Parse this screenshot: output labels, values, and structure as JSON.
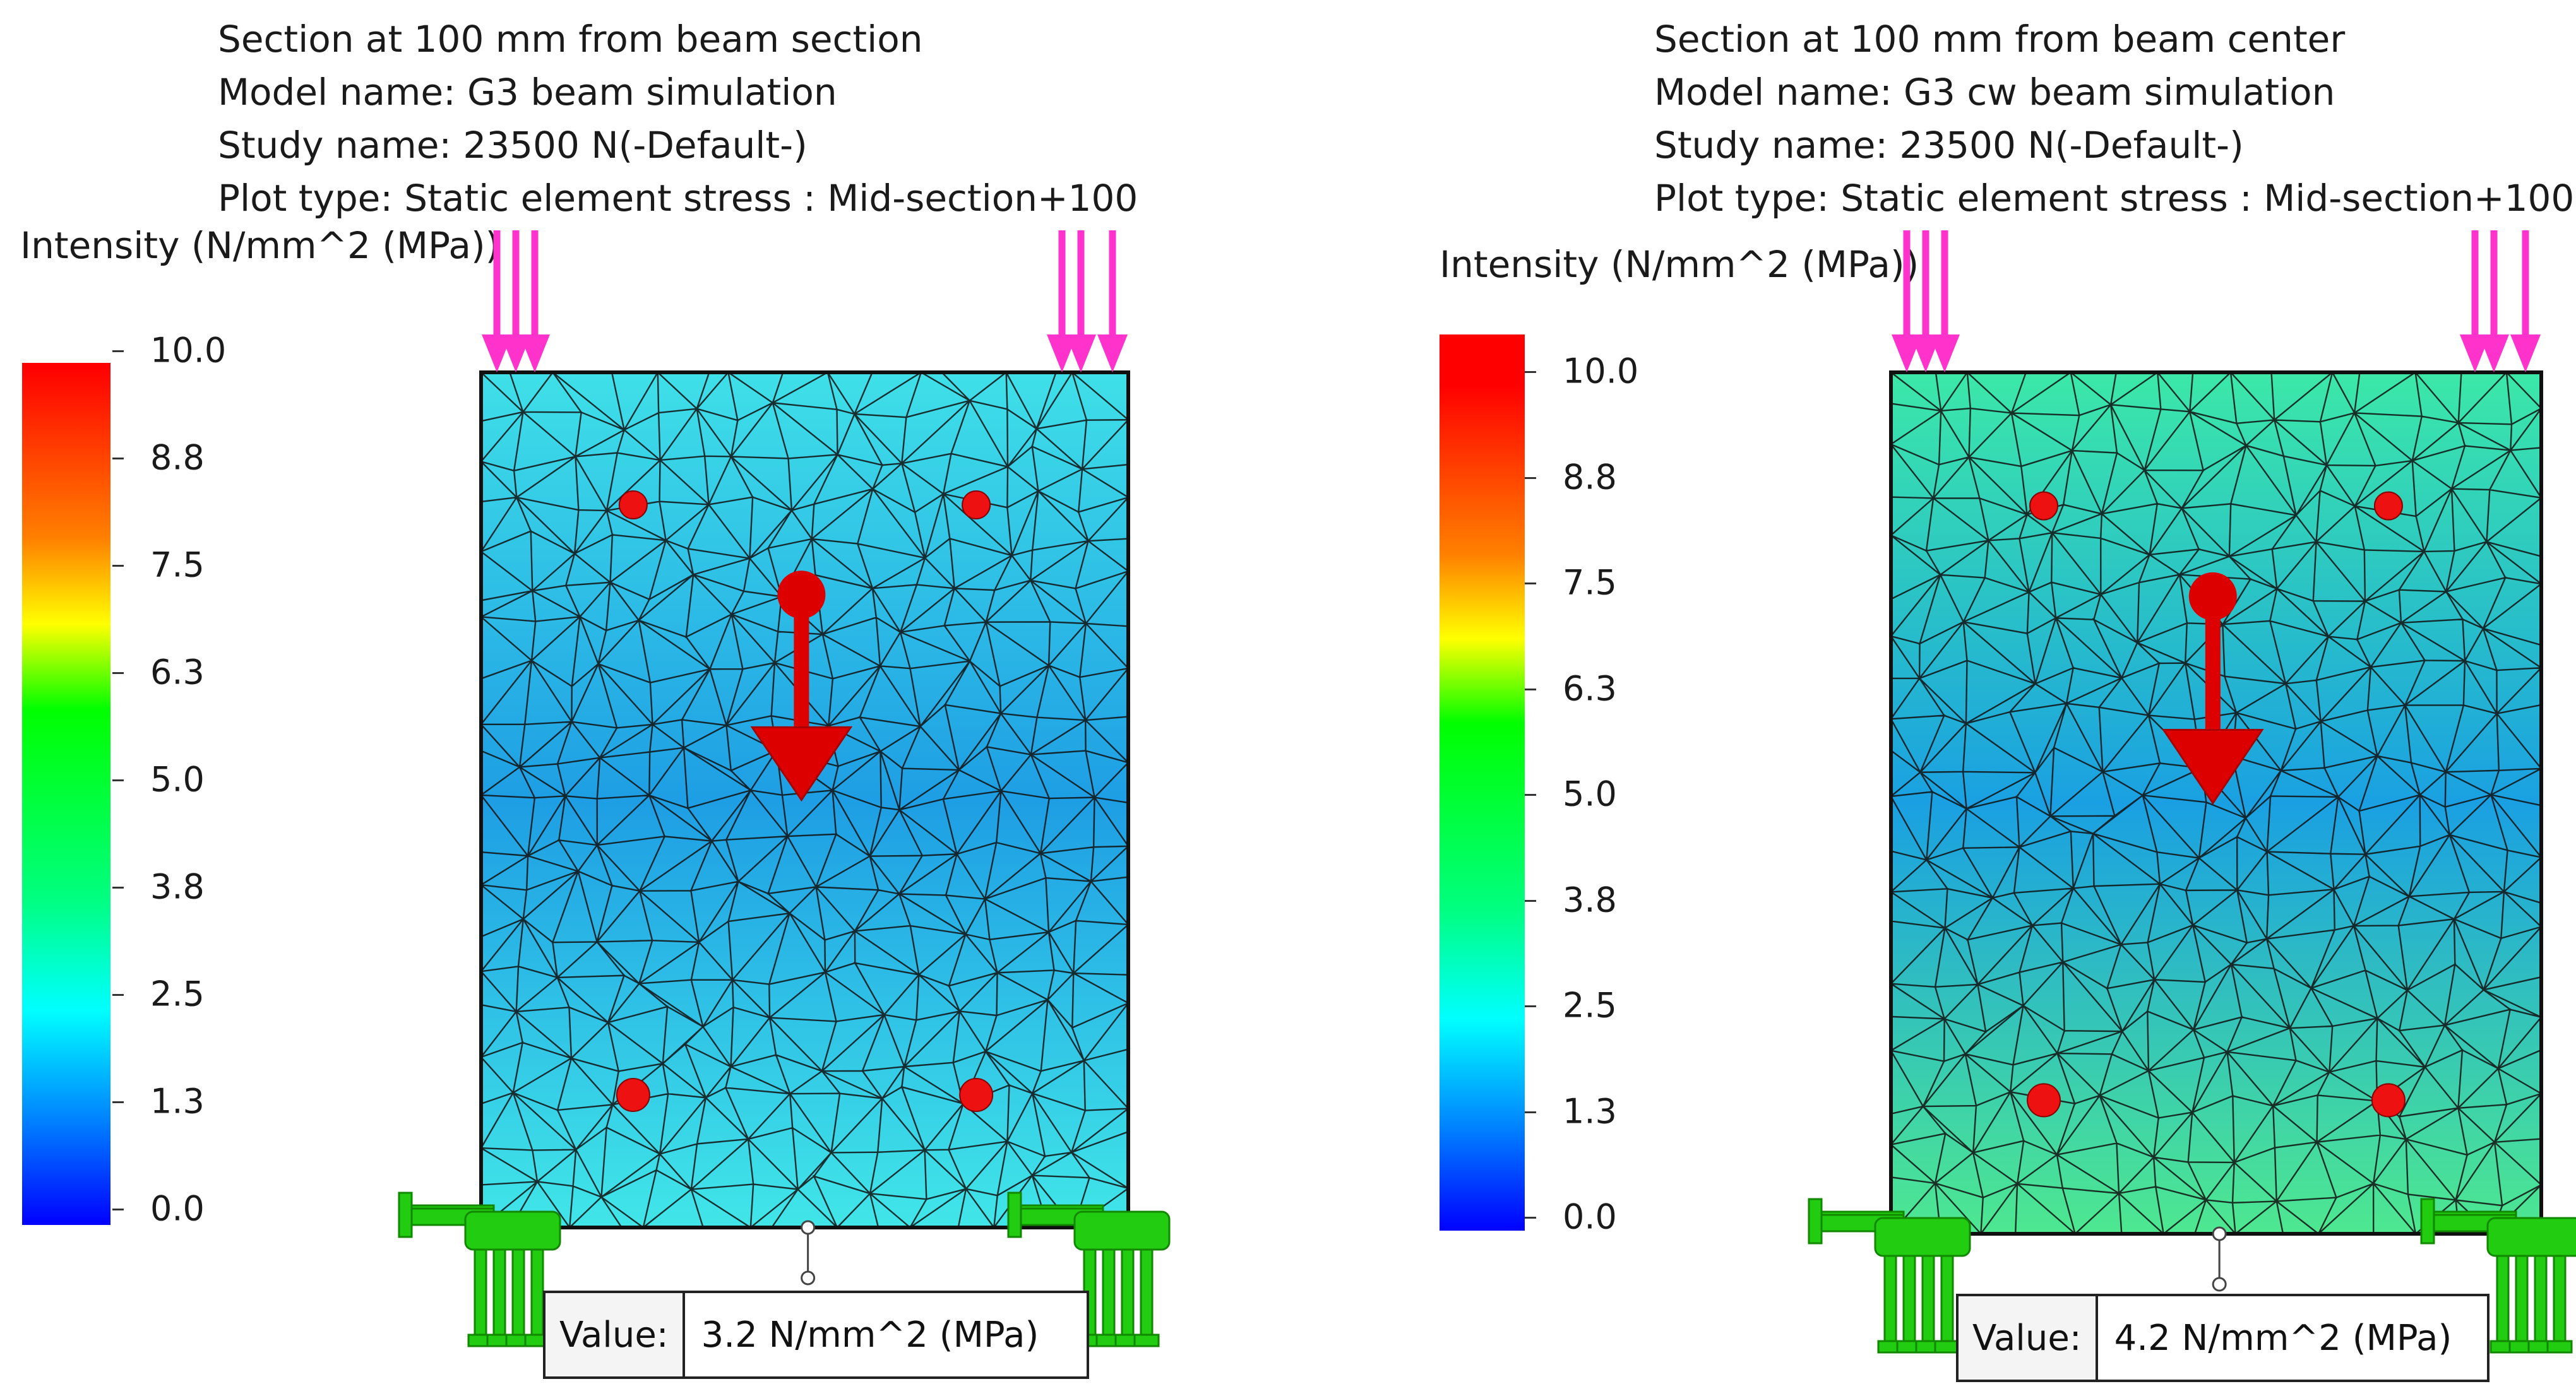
{
  "panels": [
    {
      "header": {
        "section": "Section at 100 mm from beam section",
        "model": "Model name: G3 beam simulation",
        "study": "Study name: 23500 N(-Default-)",
        "plot": "Plot type: Static element stress : Mid-section+100"
      },
      "legend": {
        "title": "Intensity (N/mm^2 (MPa))",
        "ticks": [
          "10.0",
          "8.8",
          "7.5",
          "6.3",
          "5.0",
          "3.8",
          "2.5",
          "1.3",
          "0.0"
        ]
      },
      "probe": {
        "label": "Value:",
        "value": "3.2 N/mm^2 (MPa)"
      },
      "colors": {
        "top": "#3fe0e8",
        "mid": "#1e9ee4",
        "bottom": "#41e6e8"
      }
    },
    {
      "header": {
        "section": "Section at 100 mm from beam center",
        "model": "Model name: G3 cw beam simulation",
        "study": "Study name: 23500 N(-Default-)",
        "plot": "Plot type: Static element stress : Mid-section+100"
      },
      "legend": {
        "title": "Intensity (N/mm^2 (MPa))",
        "ticks": [
          "10.0",
          "8.8",
          "7.5",
          "6.3",
          "5.0",
          "3.8",
          "2.5",
          "1.3",
          "0.0"
        ]
      },
      "probe": {
        "label": "Value:",
        "value": "4.2 N/mm^2 (MPa)"
      },
      "colors": {
        "top": "#3ce8a8",
        "mid": "#1aa0e2",
        "bottom": "#4ee890"
      }
    }
  ],
  "colors": {
    "load_arrow": "#ff33cc",
    "force_arrow": "#dd0000",
    "rebar": "#ee1111",
    "fixture": "#22cc11",
    "mesh_line": "#111111"
  }
}
